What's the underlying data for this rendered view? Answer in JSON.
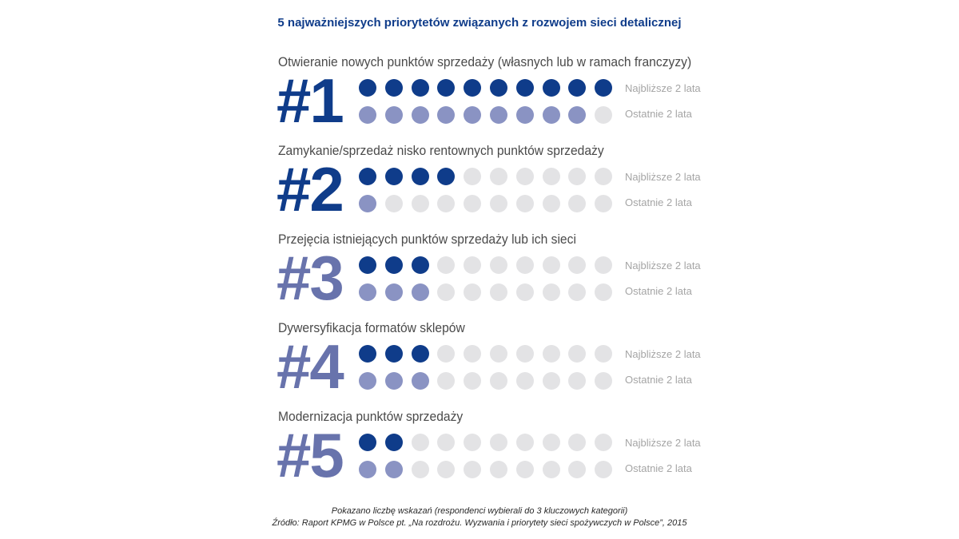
{
  "title": "5 najważniejszych priorytetów związanych z rozwojem sieci detalicznej",
  "colors": {
    "next_filled": "#0f3c8a",
    "last_filled": "#8a93c3",
    "empty": "#e3e3e5",
    "rank_high": "#0f3c8a",
    "rank_low": "#6873ac"
  },
  "chart_data": {
    "type": "dot-matrix",
    "title": "5 najważniejszych priorytetów związanych z rozwojem sieci detalicznej",
    "max_dots": 10,
    "series": [
      {
        "name": "Najbliższe 2 lata",
        "color": "#0f3c8a"
      },
      {
        "name": "Ostatnie 2 lata",
        "color": "#8a93c3"
      }
    ],
    "categories": [
      {
        "rank": "#1",
        "label": "Otwieranie nowych punktów sprzedaży (własnych lub w ramach franczyzy)",
        "next": 10,
        "last": 9
      },
      {
        "rank": "#2",
        "label": "Zamykanie/sprzedaż nisko rentownych punktów sprzedaży",
        "next": 4,
        "last": 1
      },
      {
        "rank": "#3",
        "label": "Przejęcia istniejących punktów sprzedaży lub ich sieci",
        "next": 3,
        "last": 3
      },
      {
        "rank": "#4",
        "label": "Dywersyfikacja formatów sklepów",
        "next": 3,
        "last": 3
      },
      {
        "rank": "#5",
        "label": "Modernizacja punktów sprzedaży",
        "next": 2,
        "last": 2
      }
    ]
  },
  "footnotes": {
    "note": "Pokazano liczbę wskazań (respondenci wybierali do 3 kluczowych kategorii)",
    "source": "Źródło: Raport KPMG w Polsce pt. „Na rozdrożu. Wyzwania i priorytety sieci spożywczych w Polsce”, 2015"
  }
}
